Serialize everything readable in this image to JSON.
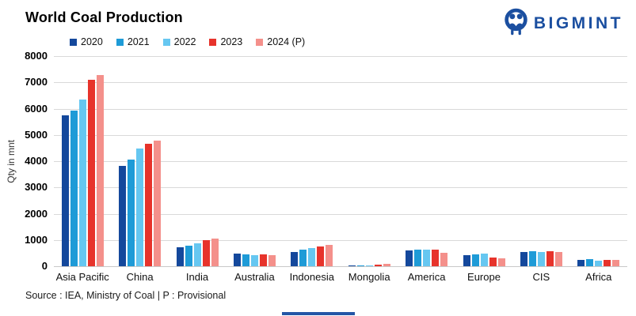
{
  "header": {
    "title": "World Coal Production",
    "logo_text": "BIGMINT"
  },
  "footer": {
    "source": "Source : IEA, Ministry of Coal | P : Provisional"
  },
  "colors": {
    "logo_blue": "#1b4fa0",
    "grid": "#d9d9d9",
    "accent_bar": "#2456a6",
    "series_2020": "#14489c",
    "series_2021": "#1e9bd7",
    "series_2022": "#66c7f1",
    "series_2023": "#e7332b",
    "series_2024": "#f4908b"
  },
  "chart_data": {
    "type": "bar",
    "title": "World Coal Production",
    "xlabel": "",
    "ylabel": "Qty in mnt",
    "ylim": [
      0,
      8000
    ],
    "ytick_step": 1000,
    "grid": true,
    "legend_position": "top-left",
    "categories": [
      "Asia Pacific",
      "China",
      "India",
      "Australia",
      "Indonesia",
      "Mongolia",
      "America",
      "Europe",
      "CIS",
      "Africa"
    ],
    "series": [
      {
        "name": "2020",
        "color": "#14489c",
        "values": [
          5750,
          3830,
          720,
          470,
          550,
          45,
          590,
          410,
          540,
          230
        ]
      },
      {
        "name": "2021",
        "color": "#1e9bd7",
        "values": [
          5930,
          4060,
          780,
          440,
          620,
          30,
          640,
          440,
          560,
          260
        ]
      },
      {
        "name": "2022",
        "color": "#66c7f1",
        "values": [
          6360,
          4490,
          880,
          420,
          690,
          40,
          635,
          490,
          530,
          210
        ]
      },
      {
        "name": "2023",
        "color": "#e7332b",
        "values": [
          7100,
          4650,
          990,
          450,
          760,
          70,
          620,
          330,
          580,
          250
        ]
      },
      {
        "name": "2024 (P)",
        "color": "#f4908b",
        "values": [
          7280,
          4780,
          1060,
          430,
          820,
          90,
          510,
          300,
          550,
          230
        ]
      }
    ]
  }
}
